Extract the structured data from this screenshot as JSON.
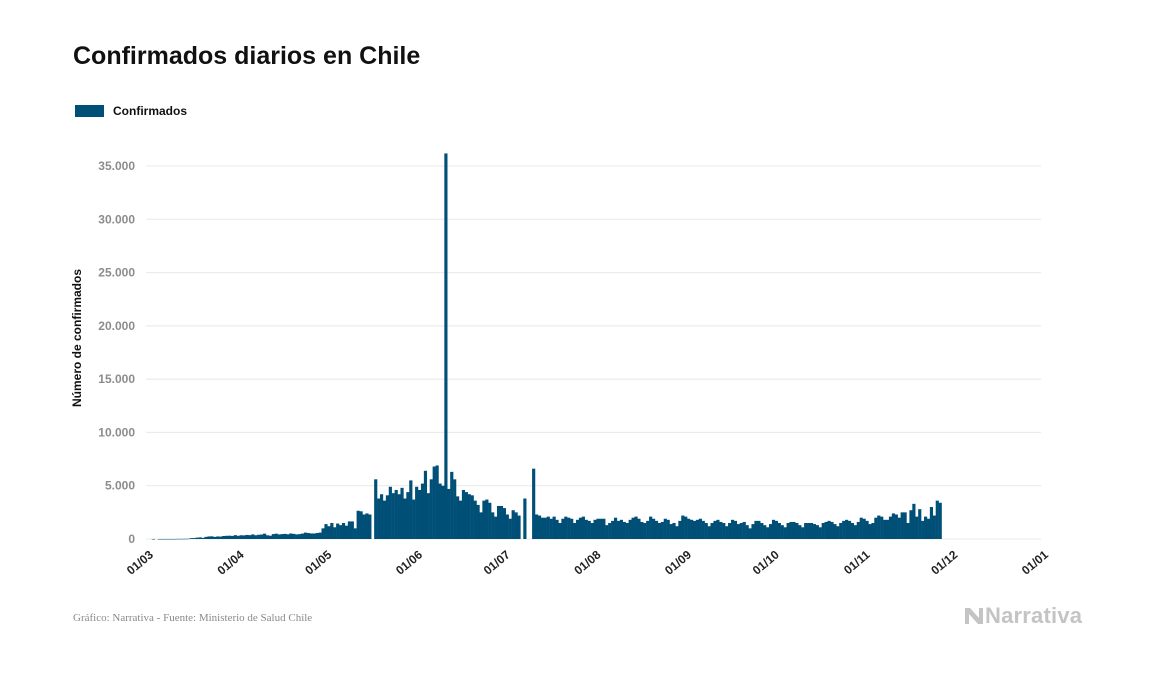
{
  "title": "Confirmados diarios en Chile",
  "footer": {
    "source": "Gráfico: Narrativa - Fuente: Ministerio de Salud Chile",
    "brand": "Narrativa"
  },
  "colors": {
    "bar": "#004f77",
    "grid": "#e8e8e8",
    "tick_label": "#8c8c8c",
    "brand": "#c4c4c4"
  },
  "chart_data": {
    "type": "bar",
    "title": "Confirmados diarios en Chile",
    "ylabel": "Número de confirmados",
    "xlabel": "",
    "legend": {
      "entries": [
        "Confirmados"
      ],
      "placement": "top-left"
    },
    "grid": true,
    "ylim": [
      0,
      37000
    ],
    "yticks": [
      0,
      5000,
      10000,
      15000,
      20000,
      25000,
      30000,
      35000
    ],
    "ytick_labels": [
      "0",
      "5.000",
      "10.000",
      "15.000",
      "20.000",
      "25.000",
      "30.000",
      "35.000"
    ],
    "xlim": [
      "2020-03-01",
      "2021-01-01"
    ],
    "xtick_labels": [
      "01/03",
      "01/04",
      "01/05",
      "01/06",
      "01/07",
      "01/08",
      "01/09",
      "01/10",
      "01/11",
      "01/12",
      "01/01"
    ],
    "start_date": "2020-03-03",
    "series": [
      {
        "name": "Confirmados",
        "values": [
          1,
          0,
          1,
          2,
          3,
          7,
          4,
          5,
          10,
          17,
          14,
          20,
          30,
          80,
          90,
          130,
          150,
          110,
          200,
          240,
          250,
          200,
          240,
          230,
          280,
          300,
          310,
          290,
          360,
          300,
          350,
          340,
          380,
          360,
          430,
          350,
          400,
          420,
          500,
          350,
          310,
          460,
          500,
          430,
          460,
          480,
          440,
          520,
          480,
          430,
          460,
          510,
          600,
          560,
          520,
          520,
          560,
          600,
          1000,
          1400,
          1200,
          1500,
          1100,
          1450,
          1300,
          1500,
          1250,
          1650,
          1650,
          1000,
          2650,
          2600,
          2300,
          2400,
          2300,
          0,
          5600,
          3800,
          4200,
          3600,
          4100,
          4900,
          4300,
          4600,
          4200,
          4800,
          3800,
          4400,
          5500,
          3700,
          4900,
          4600,
          5200,
          6400,
          4300,
          5600,
          6800,
          6900,
          5200,
          5000,
          36179,
          4700,
          6300,
          5600,
          4000,
          3600,
          4600,
          4400,
          4200,
          4100,
          3600,
          3200,
          2500,
          3600,
          3700,
          3400,
          2500,
          2100,
          3100,
          3100,
          2900,
          2300,
          1900,
          2700,
          2500,
          2200,
          0,
          3800,
          0,
          0,
          6600,
          2300,
          2200,
          2000,
          2000,
          2100,
          1900,
          2100,
          1800,
          1500,
          1900,
          2100,
          2000,
          1900,
          1500,
          1800,
          2000,
          2100,
          1800,
          1700,
          1500,
          1800,
          1900,
          1900,
          1900,
          1300,
          1500,
          1700,
          2000,
          1700,
          1800,
          1600,
          1500,
          1800,
          2000,
          2100,
          1900,
          1600,
          1500,
          1700,
          2100,
          1900,
          1700,
          1500,
          1600,
          1900,
          1800,
          1400,
          1500,
          1200,
          1700,
          2200,
          2100,
          1900,
          1800,
          1700,
          1800,
          1900,
          1700,
          1500,
          1200,
          1500,
          1700,
          1800,
          1600,
          1500,
          1200,
          1500,
          1800,
          1700,
          1400,
          1500,
          1600,
          1300,
          1000,
          1400,
          1700,
          1700,
          1500,
          1300,
          1100,
          1400,
          1800,
          1700,
          1500,
          1300,
          1100,
          1500,
          1600,
          1600,
          1500,
          1300,
          1100,
          1500,
          1500,
          1500,
          1400,
          1300,
          1100,
          1500,
          1600,
          1700,
          1600,
          1400,
          1200,
          1500,
          1700,
          1800,
          1700,
          1500,
          1300,
          1600,
          2000,
          1900,
          1700,
          1400,
          1500,
          2000,
          2200,
          2100,
          1800,
          1800,
          2100,
          2400,
          2300,
          2000,
          2500,
          2500,
          1500,
          2700,
          3300,
          2100,
          2800,
          1700,
          2100,
          1900,
          3000,
          2200,
          3600,
          3400
        ]
      }
    ]
  }
}
